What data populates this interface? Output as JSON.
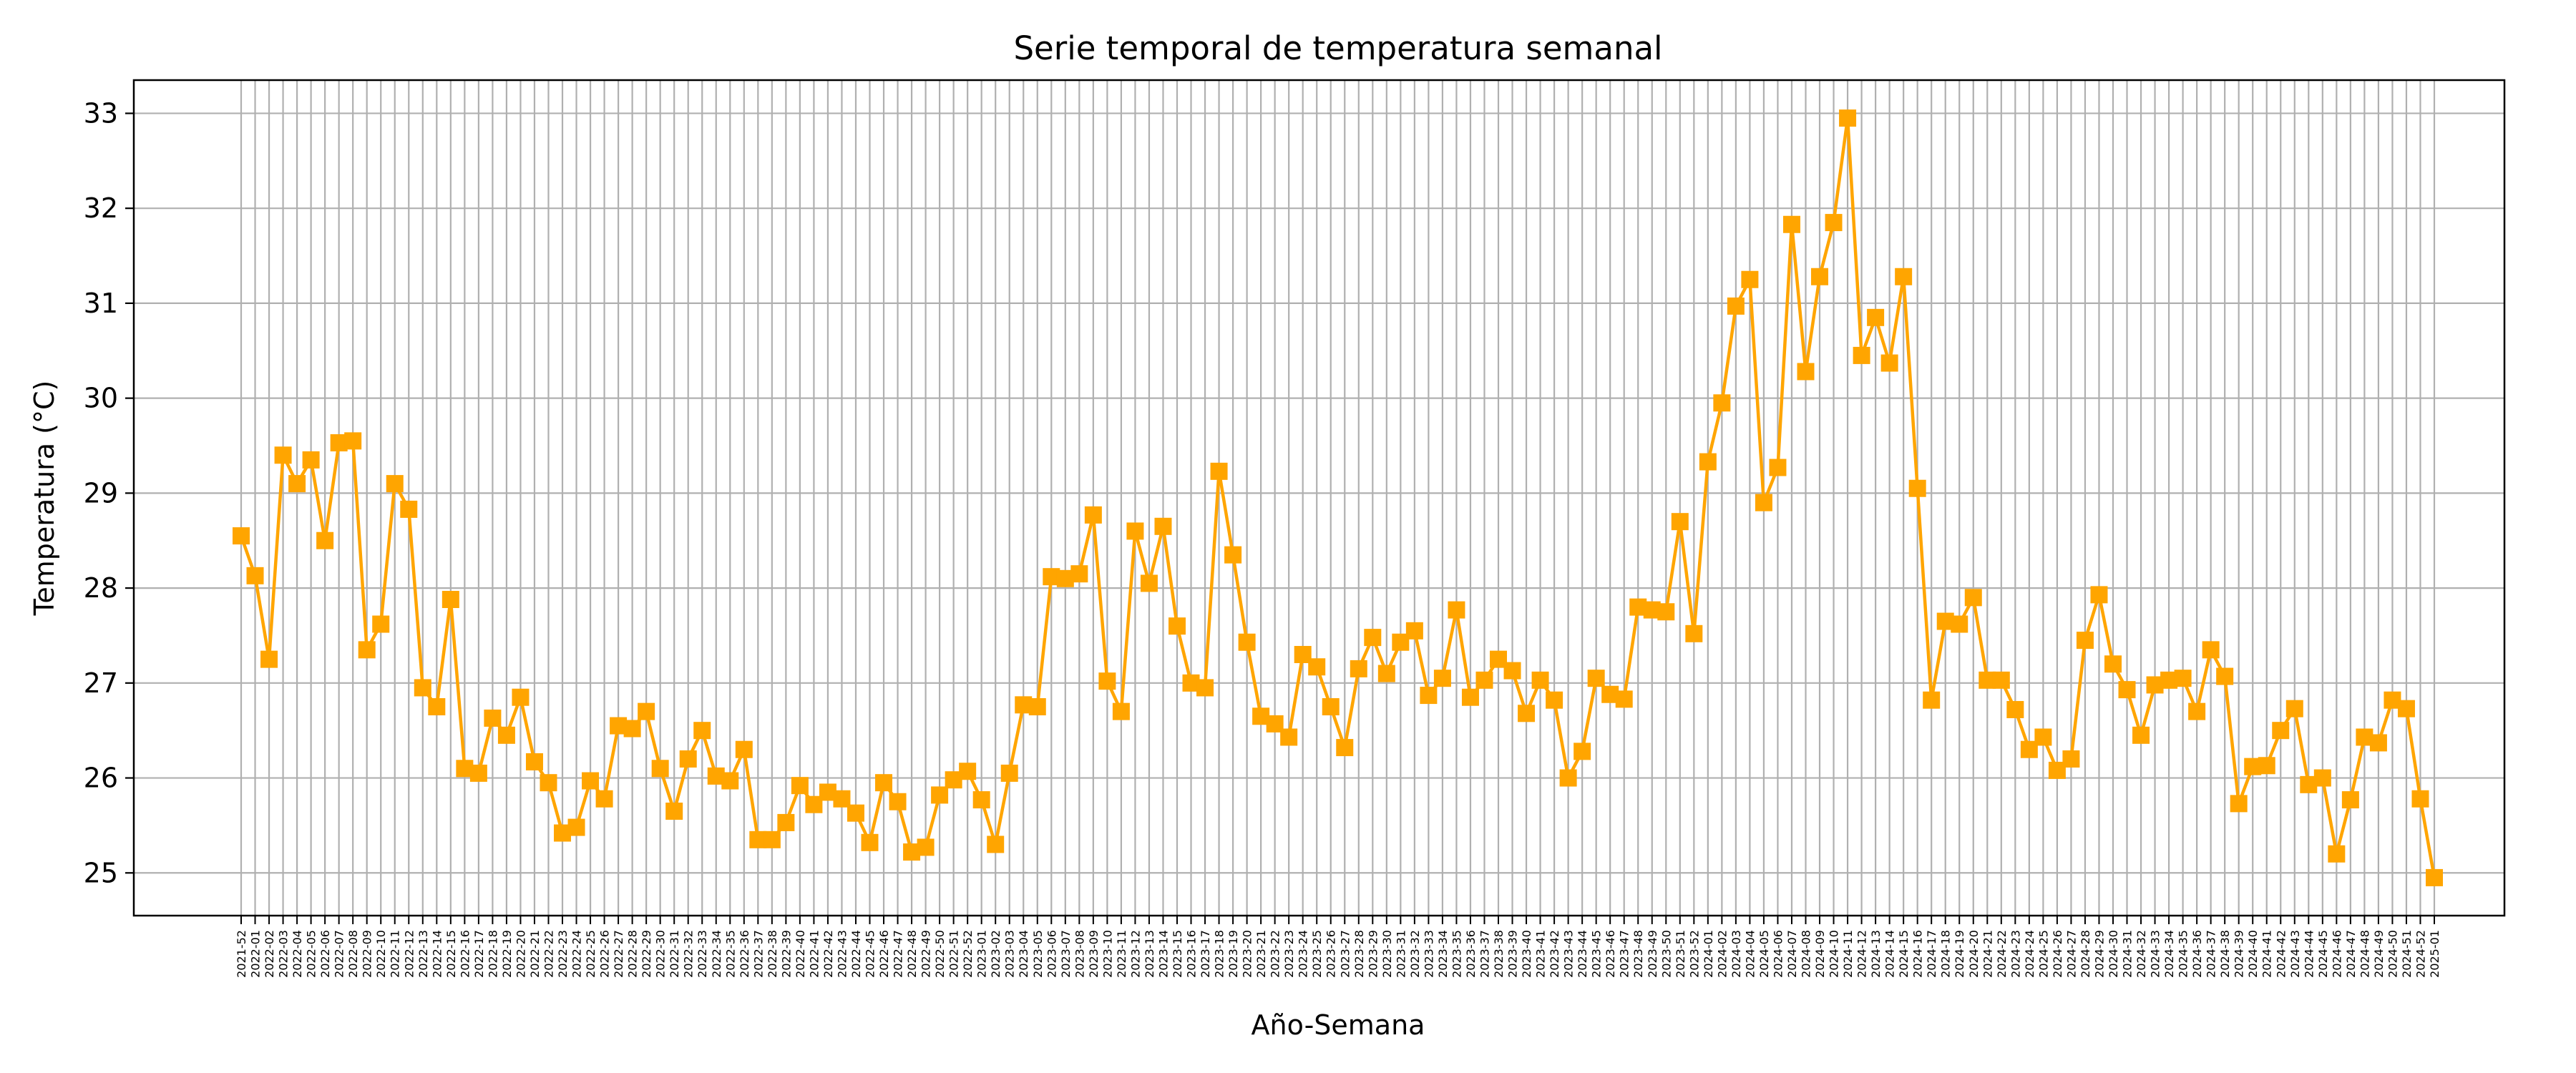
{
  "chart_data": {
    "type": "line",
    "title": "Serie temporal de temperatura semanal",
    "xlabel": "Año-Semana",
    "ylabel": "Temperatura (°C)",
    "ylim": [
      24.55,
      33.35
    ],
    "yticks": [
      25,
      26,
      27,
      28,
      29,
      30,
      31,
      32,
      33
    ],
    "grid": true,
    "legend": "none",
    "marker": "square",
    "color": "#FFA500",
    "grid_color": "#b0b0b0",
    "x": [
      "2021-52",
      "2022-01",
      "2022-02",
      "2022-03",
      "2022-04",
      "2022-05",
      "2022-06",
      "2022-07",
      "2022-08",
      "2022-09",
      "2022-10",
      "2022-11",
      "2022-12",
      "2022-13",
      "2022-14",
      "2022-15",
      "2022-16",
      "2022-17",
      "2022-18",
      "2022-19",
      "2022-20",
      "2022-21",
      "2022-22",
      "2022-23",
      "2022-24",
      "2022-25",
      "2022-26",
      "2022-27",
      "2022-28",
      "2022-29",
      "2022-30",
      "2022-31",
      "2022-32",
      "2022-33",
      "2022-34",
      "2022-35",
      "2022-36",
      "2022-37",
      "2022-38",
      "2022-39",
      "2022-40",
      "2022-41",
      "2022-42",
      "2022-43",
      "2022-44",
      "2022-45",
      "2022-46",
      "2022-47",
      "2022-48",
      "2022-49",
      "2022-50",
      "2022-51",
      "2022-52",
      "2023-01",
      "2023-02",
      "2023-03",
      "2023-04",
      "2023-05",
      "2023-06",
      "2023-07",
      "2023-08",
      "2023-09",
      "2023-10",
      "2023-11",
      "2023-12",
      "2023-13",
      "2023-14",
      "2023-15",
      "2023-16",
      "2023-17",
      "2023-18",
      "2023-19",
      "2023-20",
      "2023-21",
      "2023-22",
      "2023-23",
      "2023-24",
      "2023-25",
      "2023-26",
      "2023-27",
      "2023-28",
      "2023-29",
      "2023-30",
      "2023-31",
      "2023-32",
      "2023-33",
      "2023-34",
      "2023-35",
      "2023-36",
      "2023-37",
      "2023-38",
      "2023-39",
      "2023-40",
      "2023-41",
      "2023-42",
      "2023-43",
      "2023-44",
      "2023-45",
      "2023-46",
      "2023-47",
      "2023-48",
      "2023-49",
      "2023-50",
      "2023-51",
      "2023-52",
      "2024-01",
      "2024-02",
      "2024-03",
      "2024-04",
      "2024-05",
      "2024-06",
      "2024-07",
      "2024-08",
      "2024-09",
      "2024-10",
      "2024-11",
      "2024-12",
      "2024-13",
      "2024-14",
      "2024-15",
      "2024-16",
      "2024-17",
      "2024-18",
      "2024-19",
      "2024-20",
      "2024-21",
      "2024-22",
      "2024-23",
      "2024-24",
      "2024-25",
      "2024-26",
      "2024-27",
      "2024-28",
      "2024-29",
      "2024-30",
      "2024-31",
      "2024-32",
      "2024-33",
      "2024-34",
      "2024-35",
      "2024-36",
      "2024-37",
      "2024-38",
      "2024-39",
      "2024-40",
      "2024-41",
      "2024-42",
      "2024-43",
      "2024-44",
      "2024-45",
      "2024-46",
      "2024-47",
      "2024-48",
      "2024-49",
      "2024-50",
      "2024-51",
      "2024-52",
      "2025-01"
    ],
    "y": [
      28.55,
      28.13,
      27.25,
      29.4,
      29.1,
      29.35,
      28.5,
      29.53,
      29.55,
      27.35,
      27.62,
      29.1,
      28.83,
      26.95,
      26.75,
      27.88,
      26.1,
      26.05,
      26.63,
      26.45,
      26.85,
      26.17,
      25.95,
      25.42,
      25.48,
      25.97,
      25.78,
      26.55,
      26.52,
      26.7,
      26.1,
      25.65,
      26.2,
      26.5,
      26.02,
      25.97,
      26.3,
      25.35,
      25.35,
      25.53,
      25.92,
      25.72,
      25.85,
      25.78,
      25.63,
      25.32,
      25.95,
      25.75,
      25.22,
      25.27,
      25.82,
      25.98,
      26.07,
      25.77,
      25.3,
      26.05,
      26.77,
      26.75,
      28.12,
      28.1,
      28.15,
      28.77,
      27.02,
      26.7,
      28.6,
      28.05,
      28.65,
      27.6,
      27.0,
      26.95,
      29.23,
      28.35,
      27.43,
      26.65,
      26.57,
      26.43,
      27.3,
      27.17,
      26.75,
      26.32,
      27.15,
      27.48,
      27.1,
      27.43,
      27.55,
      26.87,
      27.05,
      27.77,
      26.85,
      27.03,
      27.25,
      27.13,
      26.68,
      27.03,
      26.82,
      26.0,
      26.28,
      27.05,
      26.88,
      26.83,
      27.8,
      27.77,
      27.75,
      28.7,
      27.52,
      29.33,
      29.95,
      30.97,
      31.25,
      28.9,
      29.27,
      31.83,
      30.28,
      31.28,
      31.85,
      32.95,
      30.45,
      30.85,
      30.37,
      31.28,
      29.05,
      26.82,
      27.65,
      27.62,
      27.9,
      27.03,
      27.03,
      26.72,
      26.3,
      26.43,
      26.08,
      26.2,
      27.45,
      27.93,
      27.2,
      26.93,
      26.45,
      26.98,
      27.03,
      27.05,
      26.7,
      27.35,
      27.07,
      25.73,
      26.12,
      26.13,
      26.5,
      26.73,
      25.93,
      26.0,
      25.2,
      25.77,
      26.43,
      26.37,
      26.82,
      26.73,
      25.78,
      24.95
    ]
  }
}
